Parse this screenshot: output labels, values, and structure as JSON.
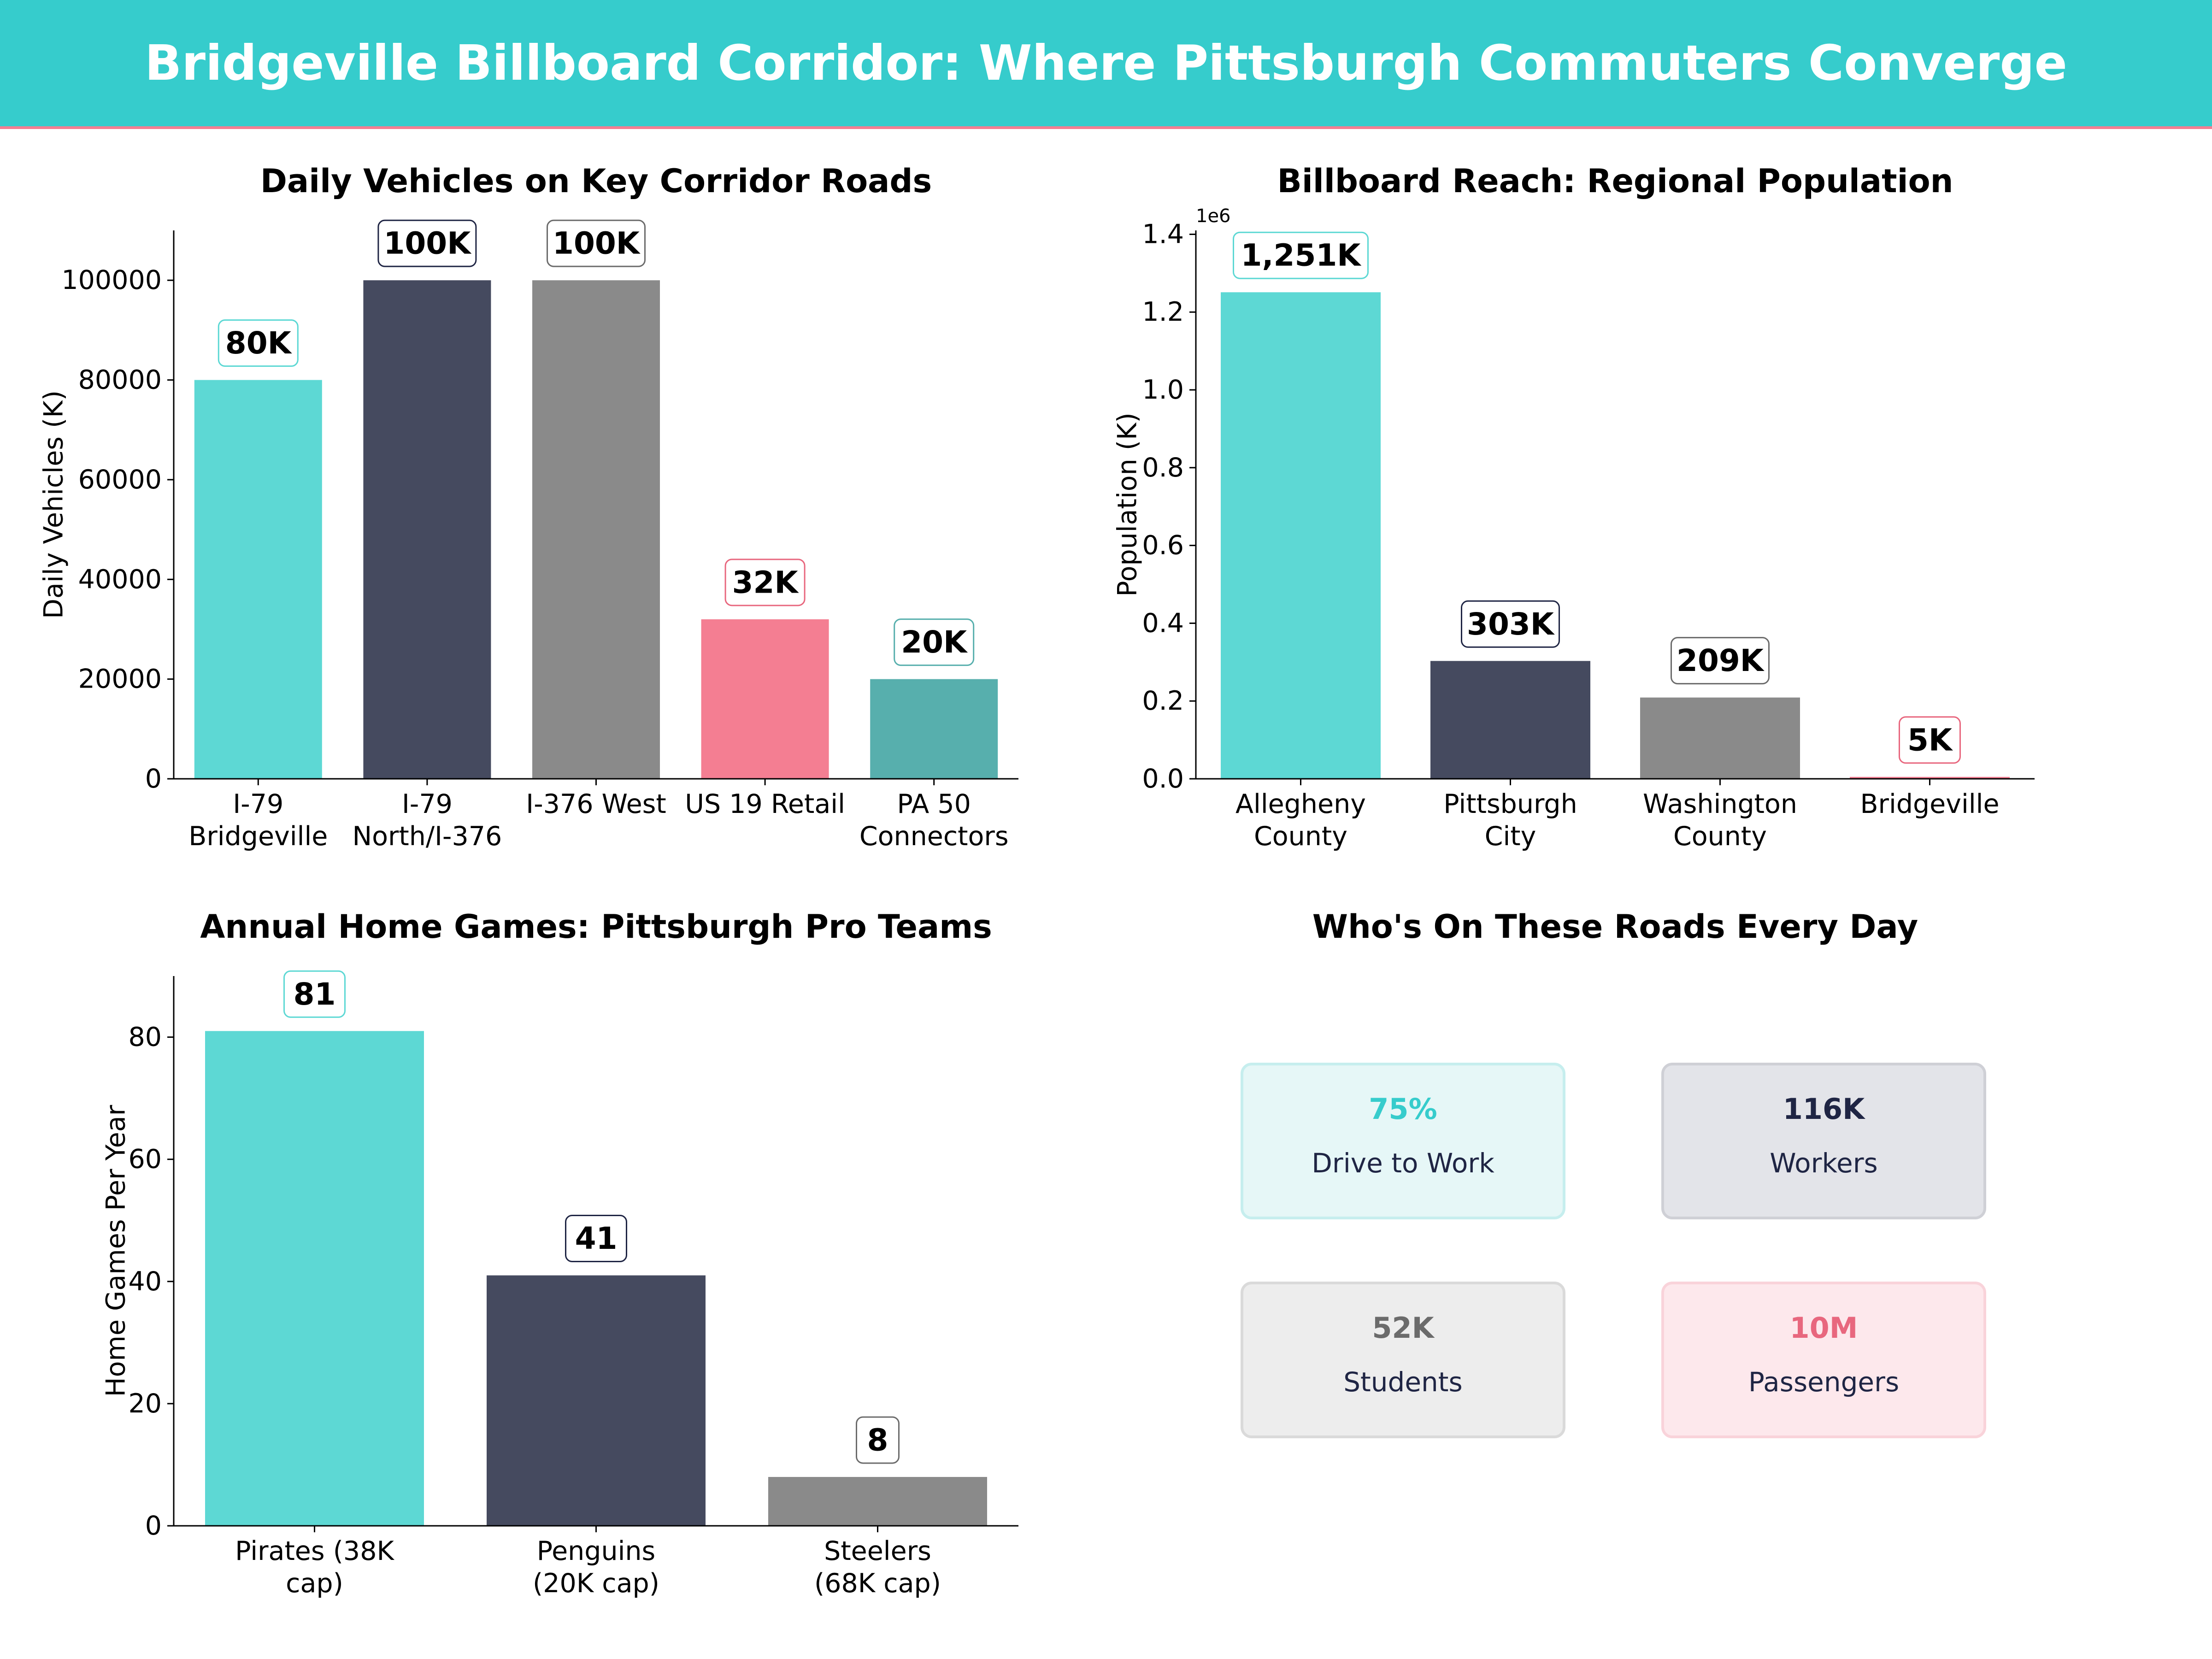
{
  "header": {
    "title": "Bridgeville Billboard Corridor: Where Pittsburgh Commuters Converge",
    "background": "#36CCCC",
    "accent_line": "#F47E92"
  },
  "chart_data": [
    {
      "type": "bar",
      "title": "Daily Vehicles on Key Corridor Roads",
      "xlabel": "",
      "ylabel": "Daily Vehicles (K)",
      "categories": [
        [
          "I-79",
          "Bridgeville"
        ],
        [
          "I-79",
          "North/I-376"
        ],
        [
          "I-376 West"
        ],
        [
          "US 19 Retail"
        ],
        [
          "PA 50",
          "Connectors"
        ]
      ],
      "values": [
        80000,
        100000,
        100000,
        32000,
        20000
      ],
      "data_labels": [
        "80K",
        "100K",
        "100K",
        "32K",
        "20K"
      ],
      "colors": [
        "#5DD8D4",
        "#454A5F",
        "#8A8A8A",
        "#F47E92",
        "#57AFAD"
      ],
      "label_borders": [
        "#5DD8D4",
        "#1F2544",
        "#6B6B6B",
        "#E8677E",
        "#57AFAD"
      ],
      "ylim": [
        0,
        110000
      ],
      "yticks": [
        0,
        20000,
        40000,
        60000,
        80000,
        100000
      ],
      "ytick_labels": [
        "0",
        "20000",
        "40000",
        "60000",
        "80000",
        "100000"
      ],
      "grid": false
    },
    {
      "type": "bar",
      "title": "Billboard Reach: Regional Population",
      "xlabel": "",
      "ylabel": "Population (K)",
      "axis_offset_label": "1e6",
      "categories": [
        [
          "Allegheny",
          "County"
        ],
        [
          "Pittsburgh",
          "City"
        ],
        [
          "Washington",
          "County"
        ],
        [
          "Bridgeville"
        ]
      ],
      "values": [
        1251000,
        303000,
        209000,
        5000
      ],
      "data_labels": [
        "1,251K",
        "303K",
        "209K",
        "5K"
      ],
      "colors": [
        "#5DD8D4",
        "#454A5F",
        "#8A8A8A",
        "#F47E92"
      ],
      "label_borders": [
        "#5DD8D4",
        "#1F2544",
        "#6B6B6B",
        "#E8677E"
      ],
      "ylim": [
        0,
        1410000
      ],
      "yticks": [
        0,
        200000,
        400000,
        600000,
        800000,
        1000000,
        1200000,
        1400000
      ],
      "ytick_labels": [
        "0.0",
        "0.2",
        "0.4",
        "0.6",
        "0.8",
        "1.0",
        "1.2",
        "1.4"
      ],
      "grid": false
    },
    {
      "type": "bar",
      "title": "Annual Home Games: Pittsburgh Pro Teams",
      "xlabel": "",
      "ylabel": "Home Games Per Year",
      "categories": [
        [
          "Pirates (38K",
          "cap)"
        ],
        [
          "Penguins",
          "(20K cap)"
        ],
        [
          "Steelers",
          "(68K cap)"
        ]
      ],
      "values": [
        81,
        41,
        8
      ],
      "data_labels": [
        "81",
        "41",
        "8"
      ],
      "colors": [
        "#5DD8D4",
        "#454A5F",
        "#8A8A8A"
      ],
      "label_borders": [
        "#5DD8D4",
        "#1F2544",
        "#6B6B6B"
      ],
      "ylim": [
        0,
        90
      ],
      "yticks": [
        0,
        20,
        40,
        60,
        80
      ],
      "ytick_labels": [
        "0",
        "20",
        "40",
        "60",
        "80"
      ],
      "grid": false
    }
  ],
  "kpi_panel": {
    "title": "Who's On These Roads Every Day",
    "cards": [
      {
        "value": "75%",
        "label": "Drive to Work",
        "value_color": "#36CCCC",
        "bg": "#E6F7F7",
        "border": "#C6EEEE"
      },
      {
        "value": "116K",
        "label": "Workers",
        "value_color": "#1F2544",
        "bg": "#E3E4E9",
        "border": "#CFD0D6"
      },
      {
        "value": "52K",
        "label": "Students",
        "value_color": "#6B6B6B",
        "bg": "#EDEDED",
        "border": "#DADADA"
      },
      {
        "value": "10M",
        "label": "Passengers",
        "value_color": "#E8677E",
        "bg": "#FDE8EC",
        "border": "#F9D3DA"
      }
    ]
  }
}
